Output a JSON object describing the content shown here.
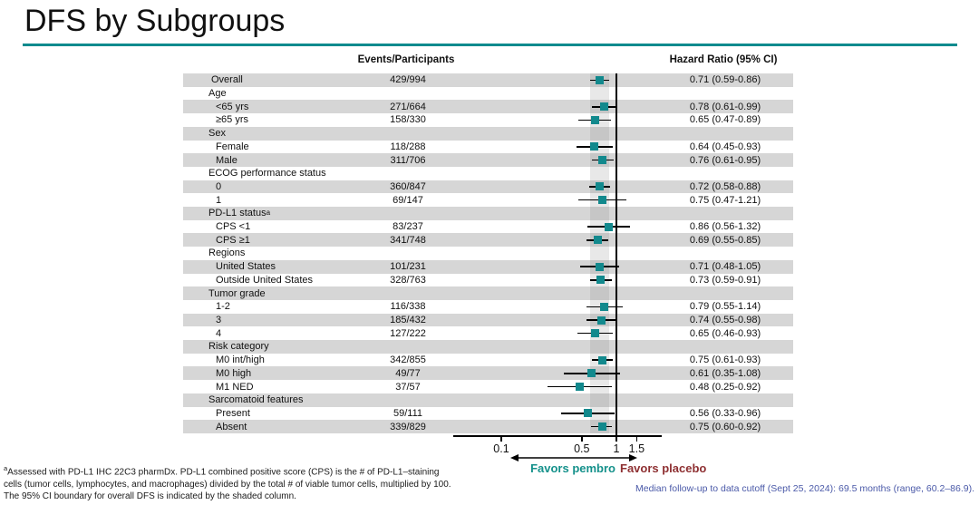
{
  "slide": {
    "title": "DFS by Subgroups",
    "footnote_lines": [
      {
        "sup": "a",
        "text": "Assessed with PD-L1 IHC 22C3 pharmDx. PD-L1 combined positive score (CPS) is the # of PD-L1–staining"
      },
      {
        "sup": "",
        "text": "cells (tumor cells, lymphocytes, and macrophages) divided by the total # of viable tumor cells, multiplied by 100."
      },
      {
        "sup": "",
        "text": "The 95% CI boundary for overall DFS is indicated by the shaded column."
      }
    ],
    "median_note": "Median follow-up to data cutoff (Sept 25, 2024): 69.5 months (range, 60.2–86.9)."
  },
  "chart_data": {
    "type": "forest",
    "title": "DFS by Subgroups",
    "columns": {
      "events_header": "Events/Participants",
      "hazard_header": "Hazard Ratio (95% CI)"
    },
    "x_axis": {
      "scale": "log",
      "ticks": [
        0.1,
        0.5,
        1,
        1.5
      ],
      "tick_labels": [
        "0.1",
        "0.5",
        "1",
        "1.5"
      ],
      "reference_line": 1.0,
      "shaded_column_ci": [
        0.59,
        0.86
      ]
    },
    "favors": {
      "left": "Favors pembro",
      "right": "Favors placebo"
    },
    "rows": [
      {
        "label": "Overall",
        "type": "item0",
        "events": "429/994",
        "hr": 0.71,
        "ci": [
          0.59,
          0.86
        ],
        "hr_text": "0.71 (0.59-0.86)"
      },
      {
        "label": "Age",
        "type": "group"
      },
      {
        "label": "<65 yrs",
        "type": "item",
        "events": "271/664",
        "hr": 0.78,
        "ci": [
          0.61,
          0.99
        ],
        "hr_text": "0.78 (0.61-0.99)"
      },
      {
        "label": "≥65 yrs",
        "type": "item",
        "events": "158/330",
        "hr": 0.65,
        "ci": [
          0.47,
          0.89
        ],
        "hr_text": "0.65 (0.47-0.89)"
      },
      {
        "label": "Sex",
        "type": "group"
      },
      {
        "label": "Female",
        "type": "item",
        "events": "118/288",
        "hr": 0.64,
        "ci": [
          0.45,
          0.93
        ],
        "hr_text": "0.64 (0.45-0.93)"
      },
      {
        "label": "Male",
        "type": "item",
        "events": "311/706",
        "hr": 0.76,
        "ci": [
          0.61,
          0.95
        ],
        "hr_text": "0.76 (0.61-0.95)"
      },
      {
        "label": "ECOG performance status",
        "type": "group"
      },
      {
        "label": "0",
        "type": "item",
        "events": "360/847",
        "hr": 0.72,
        "ci": [
          0.58,
          0.88
        ],
        "hr_text": "0.72 (0.58-0.88)"
      },
      {
        "label": "1",
        "type": "item",
        "events": "69/147",
        "hr": 0.75,
        "ci": [
          0.47,
          1.21
        ],
        "hr_text": "0.75 (0.47-1.21)"
      },
      {
        "label": "PD-L1 status",
        "label_sup": "a",
        "type": "group"
      },
      {
        "label": "CPS <1",
        "type": "item",
        "events": "83/237",
        "hr": 0.86,
        "ci": [
          0.56,
          1.32
        ],
        "hr_text": "0.86 (0.56-1.32)"
      },
      {
        "label": "CPS ≥1",
        "type": "item",
        "events": "341/748",
        "hr": 0.69,
        "ci": [
          0.55,
          0.85
        ],
        "hr_text": "0.69 (0.55-0.85)"
      },
      {
        "label": "Regions",
        "type": "group"
      },
      {
        "label": "United States",
        "type": "item",
        "events": "101/231",
        "hr": 0.71,
        "ci": [
          0.48,
          1.05
        ],
        "hr_text": "0.71 (0.48-1.05)"
      },
      {
        "label": "Outside United States",
        "type": "item",
        "events": "328/763",
        "hr": 0.73,
        "ci": [
          0.59,
          0.91
        ],
        "hr_text": "0.73 (0.59-0.91)"
      },
      {
        "label": "Tumor grade",
        "type": "group"
      },
      {
        "label": "1-2",
        "type": "item",
        "events": "116/338",
        "hr": 0.79,
        "ci": [
          0.55,
          1.14
        ],
        "hr_text": "0.79 (0.55-1.14)"
      },
      {
        "label": "3",
        "type": "item",
        "events": "185/432",
        "hr": 0.74,
        "ci": [
          0.55,
          0.98
        ],
        "hr_text": "0.74 (0.55-0.98)"
      },
      {
        "label": "4",
        "type": "item",
        "events": "127/222",
        "hr": 0.65,
        "ci": [
          0.46,
          0.93
        ],
        "hr_text": "0.65 (0.46-0.93)"
      },
      {
        "label": "Risk category",
        "type": "group"
      },
      {
        "label": "M0 int/high",
        "type": "item",
        "events": "342/855",
        "hr": 0.75,
        "ci": [
          0.61,
          0.93
        ],
        "hr_text": "0.75 (0.61-0.93)"
      },
      {
        "label": "M0 high",
        "type": "item",
        "events": "49/77",
        "hr": 0.61,
        "ci": [
          0.35,
          1.08
        ],
        "hr_text": "0.61 (0.35-1.08)"
      },
      {
        "label": "M1 NED",
        "type": "item",
        "events": "37/57",
        "hr": 0.48,
        "ci": [
          0.25,
          0.92
        ],
        "hr_text": "0.48 (0.25-0.92)"
      },
      {
        "label": "Sarcomatoid features",
        "type": "group"
      },
      {
        "label": "Present",
        "type": "item",
        "events": "59/111",
        "hr": 0.56,
        "ci": [
          0.33,
          0.96
        ],
        "hr_text": "0.56 (0.33-0.96)"
      },
      {
        "label": "Absent",
        "type": "item",
        "events": "339/829",
        "hr": 0.75,
        "ci": [
          0.6,
          0.92
        ],
        "hr_text": "0.75 (0.60-0.92)"
      }
    ],
    "colors": {
      "marker": "#12898d",
      "accent_rule": "#0e8b8e",
      "favors_left": "#15918b",
      "favors_right": "#8e3032",
      "row_shade": "#d6d6d6",
      "median_note": "#4a59a8"
    }
  }
}
